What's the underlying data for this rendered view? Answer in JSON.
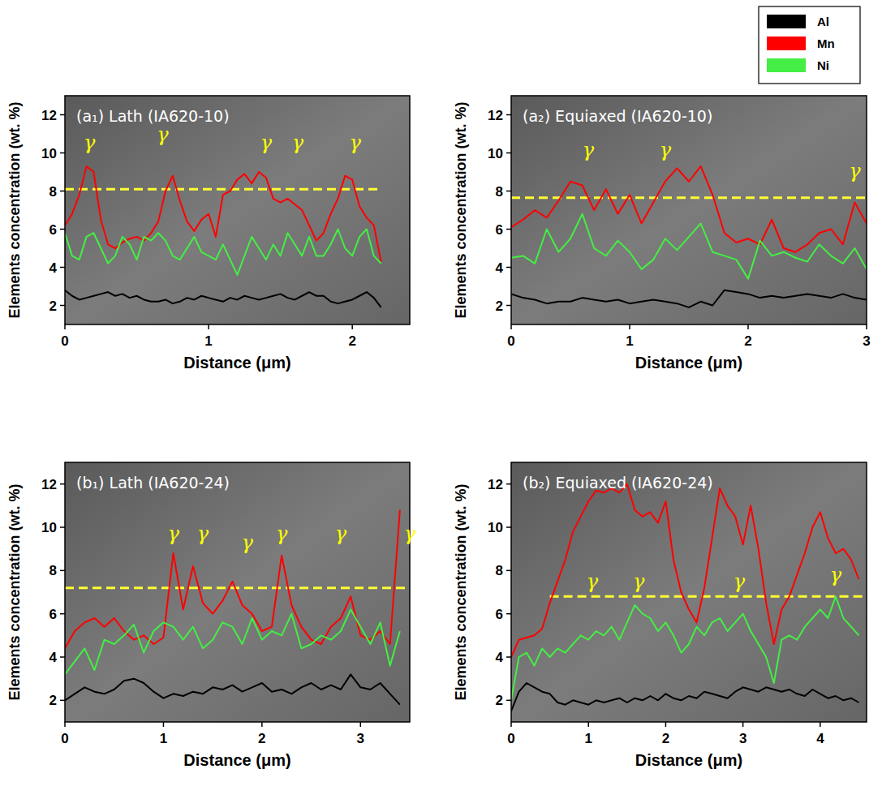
{
  "chart_data": [
    {
      "type": "line",
      "title": "(a₁) Lath (IA620-10)",
      "x_label": "Distance (μm)",
      "y_label": "Elements concentration (wt. %)",
      "x": [
        0,
        0.05,
        0.1,
        0.15,
        0.2,
        0.25,
        0.3,
        0.35,
        0.4,
        0.45,
        0.5,
        0.55,
        0.6,
        0.65,
        0.7,
        0.75,
        0.8,
        0.85,
        0.9,
        0.95,
        1,
        1.05,
        1.1,
        1.15,
        1.2,
        1.25,
        1.3,
        1.35,
        1.4,
        1.45,
        1.5,
        1.55,
        1.6,
        1.65,
        1.7,
        1.75,
        1.8,
        1.85,
        1.9,
        1.95,
        2,
        2.05,
        2.1,
        2.15,
        2.2
      ],
      "series": [
        {
          "name": "Al",
          "color": "#000000",
          "values": [
            2.8,
            2.5,
            2.3,
            2.4,
            2.5,
            2.6,
            2.7,
            2.5,
            2.6,
            2.4,
            2.5,
            2.3,
            2.2,
            2.2,
            2.3,
            2.1,
            2.2,
            2.4,
            2.3,
            2.5,
            2.4,
            2.3,
            2.2,
            2.4,
            2.3,
            2.5,
            2.4,
            2.3,
            2.4,
            2.5,
            2.6,
            2.4,
            2.3,
            2.5,
            2.7,
            2.5,
            2.5,
            2.2,
            2.1,
            2.2,
            2.3,
            2.5,
            2.7,
            2.4,
            1.9
          ]
        },
        {
          "name": "Mn",
          "color": "#ff0000",
          "values": [
            6.2,
            6.8,
            7.8,
            9.3,
            9.0,
            6.5,
            5.2,
            5.0,
            5.3,
            5.5,
            5.6,
            5.4,
            5.8,
            6.4,
            8.0,
            8.8,
            7.5,
            6.4,
            5.9,
            6.5,
            6.8,
            5.6,
            7.8,
            8.0,
            8.6,
            8.9,
            8.4,
            9.0,
            8.7,
            7.6,
            7.4,
            7.6,
            7.3,
            7.0,
            6.2,
            5.4,
            5.8,
            6.8,
            7.6,
            8.8,
            8.6,
            7.2,
            6.6,
            6.2,
            4.3
          ]
        },
        {
          "name": "Ni",
          "color": "#44ee44",
          "values": [
            5.8,
            4.6,
            4.4,
            5.6,
            5.8,
            5.0,
            4.2,
            4.6,
            5.6,
            5.2,
            4.4,
            5.6,
            5.4,
            5.8,
            5.4,
            4.6,
            4.4,
            5.0,
            5.6,
            4.8,
            4.6,
            4.4,
            5.2,
            4.4,
            3.6,
            4.6,
            5.6,
            5.0,
            4.4,
            5.2,
            4.6,
            5.8,
            5.2,
            4.6,
            5.6,
            4.6,
            4.6,
            5.2,
            6.0,
            5.0,
            4.6,
            5.6,
            6.0,
            4.6,
            4.2
          ]
        }
      ],
      "xlim": [
        0,
        2.4
      ],
      "xticks": [
        0,
        1,
        2
      ],
      "ylim": [
        1,
        13
      ],
      "yticks": [
        2,
        4,
        6,
        8,
        10,
        12
      ],
      "legend": "top-right",
      "reference_line": {
        "value": 8.1,
        "x": [
          0,
          2.2
        ],
        "color": "#ffff33",
        "line_style": "dashed"
      },
      "annotations": [
        {
          "text": "γ",
          "x": 0.17,
          "y": 10.2
        },
        {
          "text": "γ",
          "x": 0.68,
          "y": 10.6
        },
        {
          "text": "γ",
          "x": 1.4,
          "y": 10.2
        },
        {
          "text": "γ",
          "x": 1.62,
          "y": 10.2
        },
        {
          "text": "γ",
          "x": 2.02,
          "y": 10.2
        }
      ]
    },
    {
      "type": "line",
      "title": "(a₂) Equiaxed (IA620-10)",
      "x_label": "Distance (μm)",
      "y_label": "Elements concentration (wt. %)",
      "x": [
        0,
        0.1,
        0.2,
        0.3,
        0.4,
        0.5,
        0.6,
        0.7,
        0.8,
        0.9,
        1,
        1.1,
        1.2,
        1.3,
        1.4,
        1.5,
        1.6,
        1.7,
        1.8,
        1.9,
        2,
        2.1,
        2.2,
        2.3,
        2.4,
        2.5,
        2.6,
        2.7,
        2.8,
        2.9,
        3
      ],
      "series": [
        {
          "name": "Al",
          "color": "#000000",
          "values": [
            2.6,
            2.4,
            2.3,
            2.1,
            2.2,
            2.2,
            2.4,
            2.3,
            2.2,
            2.3,
            2.1,
            2.2,
            2.3,
            2.2,
            2.1,
            1.9,
            2.2,
            2.0,
            2.8,
            2.7,
            2.6,
            2.4,
            2.5,
            2.4,
            2.5,
            2.6,
            2.5,
            2.4,
            2.6,
            2.4,
            2.3
          ]
        },
        {
          "name": "Mn",
          "color": "#ff0000",
          "values": [
            6.1,
            6.5,
            7.0,
            6.6,
            7.5,
            8.5,
            8.3,
            7.0,
            8.1,
            6.8,
            7.8,
            6.3,
            7.4,
            8.5,
            9.2,
            8.5,
            9.3,
            7.8,
            5.8,
            5.3,
            5.5,
            5.2,
            6.5,
            5.0,
            4.8,
            5.2,
            5.8,
            6.0,
            5.2,
            7.4,
            6.3
          ]
        },
        {
          "name": "Ni",
          "color": "#44ee44",
          "values": [
            4.5,
            4.6,
            4.2,
            6.0,
            4.8,
            5.5,
            6.8,
            5.0,
            4.6,
            5.4,
            4.8,
            3.9,
            4.4,
            5.5,
            4.9,
            5.6,
            6.3,
            4.8,
            4.6,
            4.4,
            3.4,
            5.4,
            4.6,
            4.8,
            4.5,
            4.3,
            5.2,
            4.6,
            4.2,
            5.0,
            3.9
          ]
        }
      ],
      "xlim": [
        0,
        3
      ],
      "xticks": [
        0,
        1,
        2,
        3
      ],
      "ylim": [
        1,
        13
      ],
      "yticks": [
        2,
        4,
        6,
        8,
        10,
        12
      ],
      "reference_line": {
        "value": 7.65,
        "x": [
          0,
          3
        ],
        "color": "#ffff33",
        "line_style": "dashed"
      },
      "annotations": [
        {
          "text": "γ",
          "x": 0.65,
          "y": 9.8
        },
        {
          "text": "γ",
          "x": 1.3,
          "y": 9.8
        },
        {
          "text": "γ",
          "x": 2.9,
          "y": 8.7
        }
      ]
    },
    {
      "type": "line",
      "title": "(b₁) Lath (IA620-24)",
      "x_label": "Distance (μm)",
      "y_label": "Elements concentration (wt. %)",
      "x": [
        0,
        0.1,
        0.2,
        0.3,
        0.4,
        0.5,
        0.6,
        0.7,
        0.8,
        0.9,
        1,
        1.1,
        1.2,
        1.3,
        1.4,
        1.5,
        1.6,
        1.7,
        1.8,
        1.9,
        2,
        2.1,
        2.2,
        2.3,
        2.4,
        2.5,
        2.6,
        2.7,
        2.8,
        2.9,
        3,
        3.1,
        3.2,
        3.3,
        3.4
      ],
      "series": [
        {
          "name": "Al",
          "color": "#000000",
          "values": [
            2.0,
            2.3,
            2.6,
            2.4,
            2.3,
            2.5,
            2.9,
            3.0,
            2.8,
            2.4,
            2.1,
            2.3,
            2.2,
            2.4,
            2.3,
            2.6,
            2.5,
            2.7,
            2.4,
            2.6,
            2.8,
            2.4,
            2.5,
            2.3,
            2.6,
            2.8,
            2.5,
            2.7,
            2.5,
            3.2,
            2.6,
            2.5,
            2.8,
            2.3,
            1.8
          ]
        },
        {
          "name": "Mn",
          "color": "#ff0000",
          "values": [
            4.4,
            5.2,
            5.6,
            5.8,
            5.4,
            5.8,
            5.2,
            4.8,
            5.0,
            4.6,
            4.9,
            8.8,
            6.2,
            8.2,
            6.5,
            6.0,
            6.6,
            7.5,
            6.4,
            6.0,
            5.2,
            5.4,
            8.7,
            6.4,
            5.4,
            4.8,
            4.6,
            5.4,
            5.8,
            6.8,
            5.0,
            4.8,
            5.2,
            4.6,
            10.8
          ]
        },
        {
          "name": "Ni",
          "color": "#44ee44",
          "values": [
            3.2,
            3.8,
            4.4,
            3.4,
            4.8,
            4.6,
            5.0,
            5.5,
            4.2,
            5.2,
            5.6,
            5.4,
            4.8,
            5.4,
            4.4,
            4.8,
            5.6,
            5.4,
            4.6,
            5.8,
            4.8,
            5.2,
            5.0,
            6.0,
            4.4,
            4.6,
            5.0,
            4.8,
            5.2,
            6.2,
            5.4,
            4.6,
            5.6,
            3.6,
            5.2
          ]
        }
      ],
      "xlim": [
        0,
        3.5
      ],
      "xticks": [
        0,
        1,
        2,
        3
      ],
      "ylim": [
        1,
        13
      ],
      "yticks": [
        2,
        4,
        6,
        8,
        10,
        12
      ],
      "reference_line": {
        "value": 7.2,
        "x": [
          0,
          3.5
        ],
        "color": "#ffff33",
        "line_style": "dashed"
      },
      "annotations": [
        {
          "text": "γ",
          "x": 1.1,
          "y": 9.4
        },
        {
          "text": "γ",
          "x": 1.4,
          "y": 9.4
        },
        {
          "text": "γ",
          "x": 1.85,
          "y": 9.0
        },
        {
          "text": "γ",
          "x": 2.2,
          "y": 9.4
        },
        {
          "text": "γ",
          "x": 2.8,
          "y": 9.4
        },
        {
          "text": "γ",
          "x": 3.5,
          "y": 9.4
        }
      ]
    },
    {
      "type": "line",
      "title": "(b₂) Equiaxed (IA620-24)",
      "x_label": "Distance (μm)",
      "y_label": "Elements concentration (wt. %)",
      "x": [
        0,
        0.1,
        0.2,
        0.3,
        0.4,
        0.5,
        0.6,
        0.7,
        0.8,
        0.9,
        1,
        1.1,
        1.2,
        1.3,
        1.4,
        1.5,
        1.6,
        1.7,
        1.8,
        1.9,
        2,
        2.1,
        2.2,
        2.3,
        2.4,
        2.5,
        2.6,
        2.7,
        2.8,
        2.9,
        3,
        3.1,
        3.2,
        3.3,
        3.4,
        3.5,
        3.6,
        3.7,
        3.8,
        3.9,
        4,
        4.1,
        4.2,
        4.3,
        4.4,
        4.5
      ],
      "series": [
        {
          "name": "Al",
          "color": "#000000",
          "values": [
            1.5,
            2.4,
            2.8,
            2.6,
            2.4,
            2.3,
            1.9,
            1.8,
            2.0,
            1.9,
            1.8,
            2.0,
            1.9,
            2.0,
            2.1,
            1.9,
            2.1,
            2.0,
            2.2,
            2.0,
            2.3,
            2.1,
            2.0,
            2.2,
            2.1,
            2.4,
            2.3,
            2.2,
            2.1,
            2.4,
            2.6,
            2.5,
            2.4,
            2.6,
            2.5,
            2.4,
            2.5,
            2.3,
            2.2,
            2.5,
            2.3,
            2.1,
            2.2,
            2.0,
            2.1,
            1.9
          ]
        },
        {
          "name": "Mn",
          "color": "#ff0000",
          "values": [
            4.0,
            4.8,
            4.9,
            5.0,
            5.3,
            6.5,
            7.5,
            8.5,
            9.8,
            10.5,
            11.2,
            11.7,
            11.6,
            11.8,
            11.6,
            12.0,
            10.8,
            10.5,
            10.7,
            10.2,
            11.2,
            8.5,
            7.0,
            6.2,
            5.6,
            7.2,
            9.5,
            11.8,
            11.0,
            10.5,
            9.2,
            11.0,
            9.0,
            6.5,
            4.6,
            6.2,
            6.8,
            7.8,
            8.8,
            10.0,
            10.7,
            9.5,
            8.8,
            9.0,
            8.5,
            7.6
          ]
        },
        {
          "name": "Ni",
          "color": "#44ee44",
          "values": [
            2.0,
            4.0,
            4.2,
            3.6,
            4.4,
            4.0,
            4.4,
            4.2,
            4.6,
            5.0,
            4.8,
            5.2,
            5.0,
            5.4,
            4.8,
            5.6,
            6.4,
            6.0,
            5.8,
            5.2,
            5.6,
            5.0,
            4.2,
            4.6,
            5.4,
            5.0,
            5.6,
            5.8,
            5.2,
            5.6,
            6.0,
            5.2,
            4.6,
            4.0,
            2.8,
            4.8,
            5.0,
            4.8,
            5.4,
            5.8,
            6.2,
            5.8,
            6.8,
            5.8,
            5.4,
            5.0
          ]
        }
      ],
      "xlim": [
        0,
        4.6
      ],
      "xticks": [
        0,
        1,
        2,
        3,
        4
      ],
      "ylim": [
        1,
        13
      ],
      "yticks": [
        2,
        4,
        6,
        8,
        10,
        12
      ],
      "reference_line": {
        "value": 6.8,
        "x": [
          0.5,
          4.6
        ],
        "color": "#ffff33",
        "line_style": "dashed"
      },
      "annotations": [
        {
          "text": "γ",
          "x": 1.05,
          "y": 7.2
        },
        {
          "text": "γ",
          "x": 1.65,
          "y": 7.2
        },
        {
          "text": "γ",
          "x": 2.95,
          "y": 7.2
        },
        {
          "text": "γ",
          "x": 4.2,
          "y": 7.5
        }
      ]
    }
  ]
}
